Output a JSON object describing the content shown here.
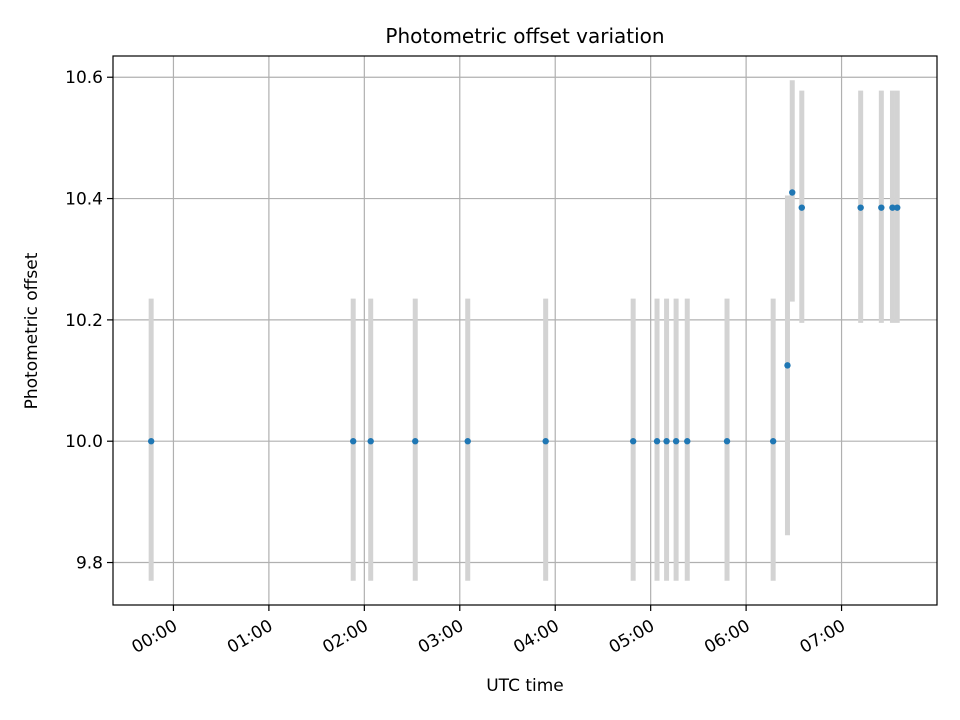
{
  "chart_data": {
    "type": "scatter",
    "title": "Photometric offset variation",
    "xlabel": "UTC time",
    "ylabel": "Photometric offset",
    "x_unit": "hours UTC",
    "xlim": [
      "23:22",
      "08:00"
    ],
    "ylim": [
      9.73,
      10.635
    ],
    "xticks": [
      "00:00",
      "01:00",
      "02:00",
      "03:00",
      "04:00",
      "05:00",
      "06:00",
      "07:00"
    ],
    "yticks": [
      "9.8",
      "10.0",
      "10.2",
      "10.4",
      "10.6"
    ],
    "grid": true,
    "colors": {
      "points": "#1f77b4",
      "errorbars": "#d3d3d3",
      "grid": "#b0b0b0"
    },
    "points": [
      {
        "time": "23:46",
        "y": 10.0,
        "err_low": 9.77,
        "err_high": 10.235
      },
      {
        "time": "01:53",
        "y": 10.0,
        "err_low": 9.77,
        "err_high": 10.235
      },
      {
        "time": "02:04",
        "y": 10.0,
        "err_low": 9.77,
        "err_high": 10.235
      },
      {
        "time": "02:32",
        "y": 10.0,
        "err_low": 9.77,
        "err_high": 10.235
      },
      {
        "time": "03:05",
        "y": 10.0,
        "err_low": 9.77,
        "err_high": 10.235
      },
      {
        "time": "03:54",
        "y": 10.0,
        "err_low": 9.77,
        "err_high": 10.235
      },
      {
        "time": "04:49",
        "y": 10.0,
        "err_low": 9.77,
        "err_high": 10.235
      },
      {
        "time": "05:04",
        "y": 10.0,
        "err_low": 9.77,
        "err_high": 10.235
      },
      {
        "time": "05:10",
        "y": 10.0,
        "err_low": 9.77,
        "err_high": 10.235
      },
      {
        "time": "05:16",
        "y": 10.0,
        "err_low": 9.77,
        "err_high": 10.235
      },
      {
        "time": "05:23",
        "y": 10.0,
        "err_low": 9.77,
        "err_high": 10.235
      },
      {
        "time": "05:48",
        "y": 10.0,
        "err_low": 9.77,
        "err_high": 10.235
      },
      {
        "time": "06:17",
        "y": 10.0,
        "err_low": 9.77,
        "err_high": 10.235
      },
      {
        "time": "06:26",
        "y": 10.125,
        "err_low": 9.845,
        "err_high": 10.405
      },
      {
        "time": "06:29",
        "y": 10.41,
        "err_low": 10.23,
        "err_high": 10.595
      },
      {
        "time": "06:35",
        "y": 10.385,
        "err_low": 10.195,
        "err_high": 10.578
      },
      {
        "time": "07:12",
        "y": 10.385,
        "err_low": 10.195,
        "err_high": 10.578
      },
      {
        "time": "07:25",
        "y": 10.385,
        "err_low": 10.195,
        "err_high": 10.578
      },
      {
        "time": "07:32",
        "y": 10.385,
        "err_low": 10.195,
        "err_high": 10.578
      },
      {
        "time": "07:35",
        "y": 10.385,
        "err_low": 10.195,
        "err_high": 10.578
      }
    ]
  }
}
